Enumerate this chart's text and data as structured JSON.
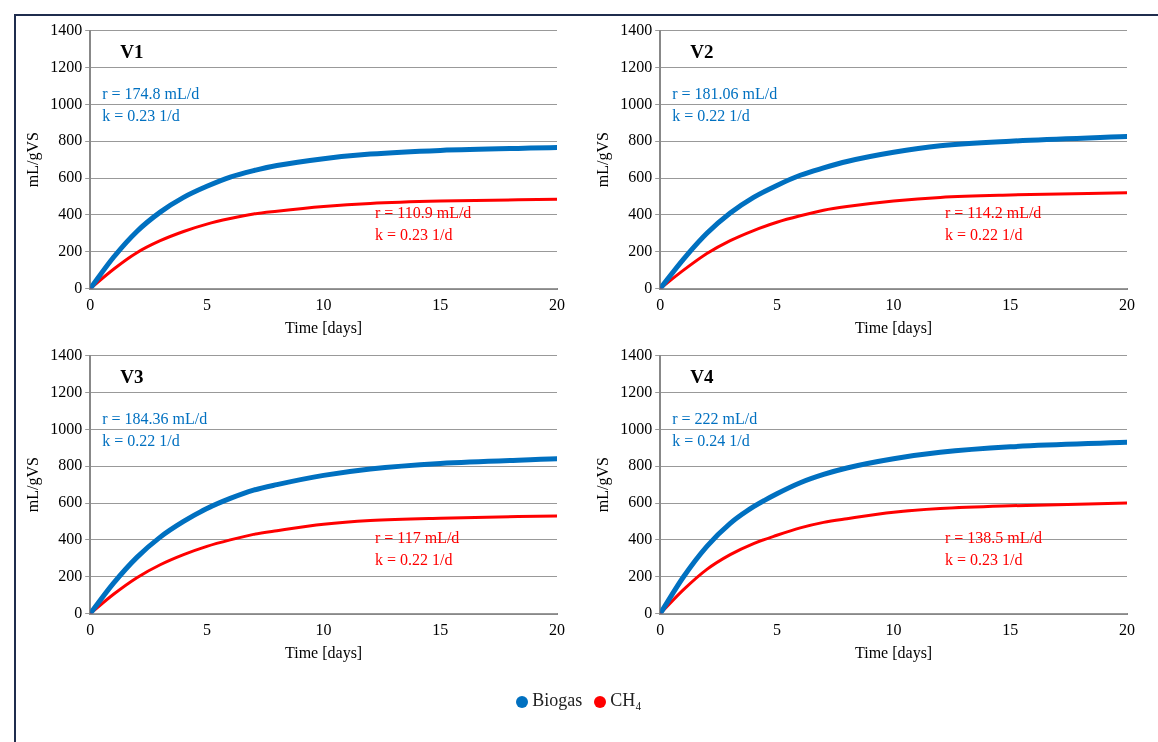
{
  "chart_data": [
    {
      "type": "line",
      "title": "V1",
      "xlabel": "Time [days]",
      "ylabel": "mL/gVS",
      "x": [
        0,
        1,
        2,
        3,
        4,
        5,
        6,
        7,
        8,
        10,
        12,
        15,
        20
      ],
      "xlim": [
        0,
        20
      ],
      "xticks": [
        0,
        5,
        10,
        15,
        20
      ],
      "ylim": [
        0,
        1400
      ],
      "yticks": [
        0,
        200,
        400,
        600,
        800,
        1000,
        1200,
        1400
      ],
      "grid": "y",
      "marker": "none",
      "line_style": "solid",
      "series": [
        {
          "color": "#0070c0",
          "values": [
            0,
            170,
            310,
            415,
            495,
            555,
            605,
            640,
            668,
            705,
            730,
            750,
            765
          ]
        },
        {
          "color": "#ff0000",
          "values": [
            0,
            105,
            195,
            260,
            310,
            350,
            380,
            405,
            420,
            445,
            462,
            475,
            485
          ]
        }
      ],
      "annotations": [
        "r = 174.8 mL/d",
        "k = 0.23 1/d",
        "r = 110.9 mL/d",
        "k = 0.23 1/d"
      ]
    },
    {
      "type": "line",
      "title": "V2",
      "xlabel": "Time [days]",
      "ylabel": "mL/gVS",
      "x": [
        0,
        1,
        2,
        3,
        4,
        5,
        6,
        7,
        8,
        10,
        12,
        15,
        20
      ],
      "xlim": [
        0,
        20
      ],
      "xticks": [
        0,
        5,
        10,
        15,
        20
      ],
      "ylim": [
        0,
        1400
      ],
      "yticks": [
        0,
        200,
        400,
        600,
        800,
        1000,
        1200,
        1400
      ],
      "grid": "y",
      "marker": "none",
      "line_style": "solid",
      "series": [
        {
          "color": "#0070c0",
          "values": [
            0,
            160,
            300,
            410,
            495,
            560,
            615,
            655,
            690,
            740,
            775,
            800,
            825
          ]
        },
        {
          "color": "#ff0000",
          "values": [
            0,
            100,
            190,
            260,
            315,
            360,
            395,
            425,
            445,
            475,
            495,
            508,
            520
          ]
        }
      ],
      "annotations": [
        "r = 181.06 mL/d",
        "k = 0.22 1/d",
        "r = 114.2 mL/d",
        "k = 0.22 1/d"
      ]
    },
    {
      "type": "line",
      "title": "V3",
      "xlabel": "Time [days]",
      "ylabel": "mL/gVS",
      "x": [
        0,
        1,
        2,
        3,
        4,
        5,
        6,
        7,
        8,
        10,
        12,
        15,
        20
      ],
      "xlim": [
        0,
        20
      ],
      "xticks": [
        0,
        5,
        10,
        15,
        20
      ],
      "ylim": [
        0,
        1400
      ],
      "yticks": [
        0,
        200,
        400,
        600,
        800,
        1000,
        1200,
        1400
      ],
      "grid": "y",
      "marker": "none",
      "line_style": "solid",
      "series": [
        {
          "color": "#0070c0",
          "values": [
            0,
            165,
            305,
            415,
            500,
            570,
            625,
            670,
            700,
            750,
            785,
            815,
            840
          ]
        },
        {
          "color": "#ff0000",
          "values": [
            0,
            105,
            195,
            265,
            320,
            365,
            400,
            430,
            450,
            485,
            505,
            518,
            530
          ]
        }
      ],
      "annotations": [
        "r = 184.36 mL/d",
        "k = 0.22 1/d",
        "r = 117 mL/d",
        "k = 0.22 1/d"
      ]
    },
    {
      "type": "line",
      "title": "V4",
      "xlabel": "Time [days]",
      "ylabel": "mL/gVS",
      "x": [
        0,
        1,
        2,
        3,
        4,
        5,
        6,
        7,
        8,
        10,
        12,
        15,
        20
      ],
      "xlim": [
        0,
        20
      ],
      "xticks": [
        0,
        5,
        10,
        15,
        20
      ],
      "ylim": [
        0,
        1400
      ],
      "yticks": [
        0,
        200,
        400,
        600,
        800,
        1000,
        1200,
        1400
      ],
      "grid": "y",
      "marker": "none",
      "line_style": "solid",
      "legend": "bottom",
      "series": [
        {
          "name": "Biogas",
          "color": "#0070c0",
          "values": [
            0,
            200,
            365,
            490,
            580,
            650,
            710,
            755,
            790,
            840,
            875,
            905,
            930
          ]
        },
        {
          "name": "CH₄",
          "color": "#ff0000",
          "values": [
            0,
            130,
            240,
            320,
            380,
            425,
            465,
            495,
            515,
            550,
            570,
            585,
            600
          ]
        }
      ],
      "annotations": [
        "r = 222 mL/d",
        "k = 0.24 1/d",
        "r = 138.5 mL/d",
        "k = 0.23 1/d"
      ]
    }
  ]
}
